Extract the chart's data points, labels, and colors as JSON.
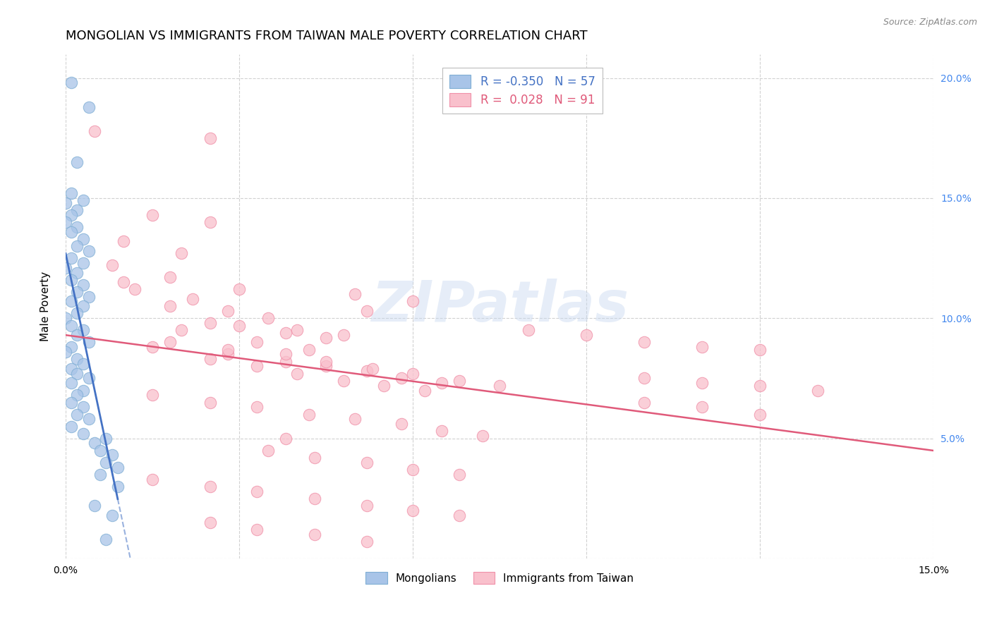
{
  "title": "MONGOLIAN VS IMMIGRANTS FROM TAIWAN MALE POVERTY CORRELATION CHART",
  "source": "Source: ZipAtlas.com",
  "ylabel": "Male Poverty",
  "xlim": [
    0.0,
    0.15
  ],
  "ylim": [
    0.0,
    0.21
  ],
  "mongolian_color": "#a8c4e8",
  "mongolian_edge_color": "#7faed4",
  "taiwan_color": "#f9c0cc",
  "taiwan_edge_color": "#f090a8",
  "mongolian_line_color": "#4472c4",
  "taiwan_line_color": "#e05a7a",
  "right_axis_color": "#4488ee",
  "watermark_color": "#c8d8f0",
  "background_color": "#ffffff",
  "grid_color": "#cccccc",
  "mongolian_scatter": [
    [
      0.001,
      0.198
    ],
    [
      0.004,
      0.188
    ],
    [
      0.002,
      0.165
    ],
    [
      0.001,
      0.152
    ],
    [
      0.003,
      0.149
    ],
    [
      0.0,
      0.148
    ],
    [
      0.002,
      0.145
    ],
    [
      0.001,
      0.143
    ],
    [
      0.0,
      0.14
    ],
    [
      0.002,
      0.138
    ],
    [
      0.001,
      0.136
    ],
    [
      0.003,
      0.133
    ],
    [
      0.002,
      0.13
    ],
    [
      0.004,
      0.128
    ],
    [
      0.001,
      0.125
    ],
    [
      0.003,
      0.123
    ],
    [
      0.0,
      0.121
    ],
    [
      0.002,
      0.119
    ],
    [
      0.001,
      0.116
    ],
    [
      0.003,
      0.114
    ],
    [
      0.002,
      0.111
    ],
    [
      0.004,
      0.109
    ],
    [
      0.001,
      0.107
    ],
    [
      0.003,
      0.105
    ],
    [
      0.002,
      0.102
    ],
    [
      0.0,
      0.1
    ],
    [
      0.001,
      0.097
    ],
    [
      0.003,
      0.095
    ],
    [
      0.002,
      0.093
    ],
    [
      0.004,
      0.09
    ],
    [
      0.001,
      0.088
    ],
    [
      0.0,
      0.086
    ],
    [
      0.002,
      0.083
    ],
    [
      0.003,
      0.081
    ],
    [
      0.001,
      0.079
    ],
    [
      0.002,
      0.077
    ],
    [
      0.004,
      0.075
    ],
    [
      0.001,
      0.073
    ],
    [
      0.003,
      0.07
    ],
    [
      0.002,
      0.068
    ],
    [
      0.001,
      0.065
    ],
    [
      0.003,
      0.063
    ],
    [
      0.002,
      0.06
    ],
    [
      0.004,
      0.058
    ],
    [
      0.001,
      0.055
    ],
    [
      0.003,
      0.052
    ],
    [
      0.007,
      0.05
    ],
    [
      0.005,
      0.048
    ],
    [
      0.006,
      0.045
    ],
    [
      0.008,
      0.043
    ],
    [
      0.007,
      0.04
    ],
    [
      0.009,
      0.038
    ],
    [
      0.006,
      0.035
    ],
    [
      0.009,
      0.03
    ],
    [
      0.005,
      0.022
    ],
    [
      0.008,
      0.018
    ],
    [
      0.007,
      0.008
    ]
  ],
  "taiwan_scatter": [
    [
      0.005,
      0.178
    ],
    [
      0.025,
      0.175
    ],
    [
      0.015,
      0.143
    ],
    [
      0.025,
      0.14
    ],
    [
      0.01,
      0.132
    ],
    [
      0.02,
      0.127
    ],
    [
      0.008,
      0.122
    ],
    [
      0.018,
      0.117
    ],
    [
      0.01,
      0.115
    ],
    [
      0.012,
      0.112
    ],
    [
      0.03,
      0.112
    ],
    [
      0.022,
      0.108
    ],
    [
      0.018,
      0.105
    ],
    [
      0.028,
      0.103
    ],
    [
      0.035,
      0.1
    ],
    [
      0.025,
      0.098
    ],
    [
      0.04,
      0.095
    ],
    [
      0.048,
      0.093
    ],
    [
      0.05,
      0.11
    ],
    [
      0.06,
      0.107
    ],
    [
      0.052,
      0.103
    ],
    [
      0.03,
      0.097
    ],
    [
      0.038,
      0.094
    ],
    [
      0.045,
      0.092
    ],
    [
      0.033,
      0.09
    ],
    [
      0.042,
      0.087
    ],
    [
      0.028,
      0.085
    ],
    [
      0.038,
      0.082
    ],
    [
      0.045,
      0.08
    ],
    [
      0.052,
      0.078
    ],
    [
      0.058,
      0.075
    ],
    [
      0.065,
      0.073
    ],
    [
      0.02,
      0.095
    ],
    [
      0.015,
      0.088
    ],
    [
      0.025,
      0.083
    ],
    [
      0.033,
      0.08
    ],
    [
      0.04,
      0.077
    ],
    [
      0.048,
      0.074
    ],
    [
      0.055,
      0.072
    ],
    [
      0.062,
      0.07
    ],
    [
      0.015,
      0.068
    ],
    [
      0.025,
      0.065
    ],
    [
      0.033,
      0.063
    ],
    [
      0.042,
      0.06
    ],
    [
      0.05,
      0.058
    ],
    [
      0.058,
      0.056
    ],
    [
      0.065,
      0.053
    ],
    [
      0.072,
      0.051
    ],
    [
      0.018,
      0.09
    ],
    [
      0.028,
      0.087
    ],
    [
      0.038,
      0.085
    ],
    [
      0.045,
      0.082
    ],
    [
      0.053,
      0.079
    ],
    [
      0.06,
      0.077
    ],
    [
      0.068,
      0.074
    ],
    [
      0.075,
      0.072
    ],
    [
      0.08,
      0.095
    ],
    [
      0.09,
      0.093
    ],
    [
      0.035,
      0.045
    ],
    [
      0.043,
      0.042
    ],
    [
      0.052,
      0.04
    ],
    [
      0.06,
      0.037
    ],
    [
      0.068,
      0.035
    ],
    [
      0.015,
      0.033
    ],
    [
      0.025,
      0.03
    ],
    [
      0.033,
      0.028
    ],
    [
      0.043,
      0.025
    ],
    [
      0.052,
      0.022
    ],
    [
      0.06,
      0.02
    ],
    [
      0.068,
      0.018
    ],
    [
      0.025,
      0.015
    ],
    [
      0.033,
      0.012
    ],
    [
      0.043,
      0.01
    ],
    [
      0.052,
      0.007
    ],
    [
      0.038,
      0.05
    ],
    [
      0.1,
      0.09
    ],
    [
      0.11,
      0.088
    ],
    [
      0.12,
      0.087
    ],
    [
      0.1,
      0.075
    ],
    [
      0.11,
      0.073
    ],
    [
      0.12,
      0.072
    ],
    [
      0.13,
      0.07
    ],
    [
      0.1,
      0.065
    ],
    [
      0.11,
      0.063
    ],
    [
      0.12,
      0.06
    ]
  ],
  "watermark": "ZIPatlas",
  "title_fontsize": 13,
  "axis_label_fontsize": 11,
  "tick_fontsize": 10
}
